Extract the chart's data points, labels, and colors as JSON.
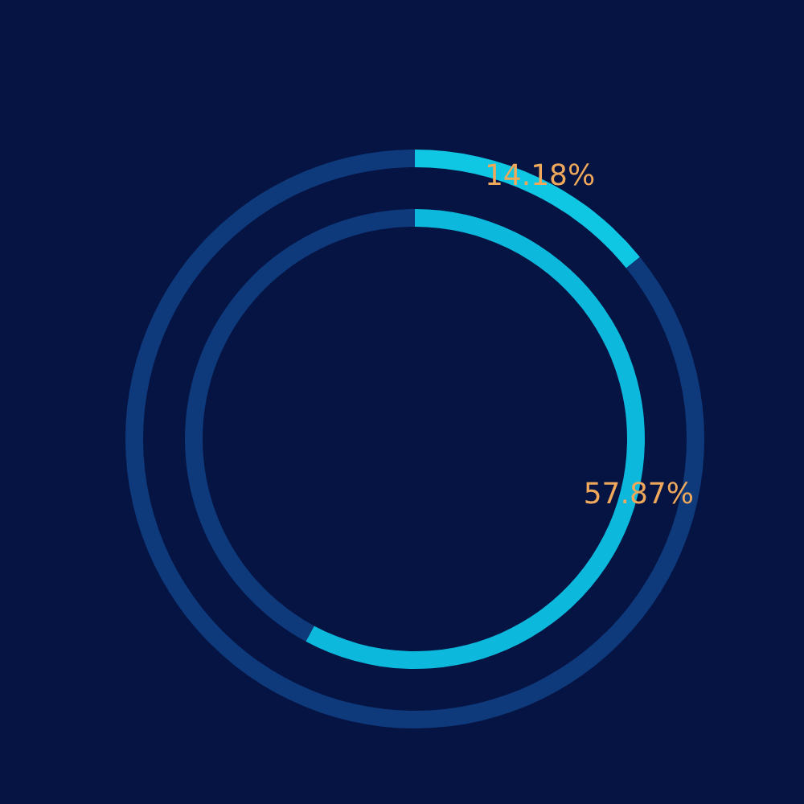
{
  "chart_data": {
    "type": "donut",
    "categories": [
      null,
      null
    ],
    "series": [
      {
        "values": [
          14.18,
          85.82
        ],
        "colors": [
          "#0fc6e3",
          "#0e3a7c"
        ],
        "value_labels": [
          "14.18%",
          null
        ]
      },
      {
        "values": [
          57.87,
          42.13
        ],
        "colors": [
          "#0cb8dc",
          "#0e3a7c"
        ],
        "value_labels": [
          "57.87%",
          null
        ]
      }
    ]
  }
}
